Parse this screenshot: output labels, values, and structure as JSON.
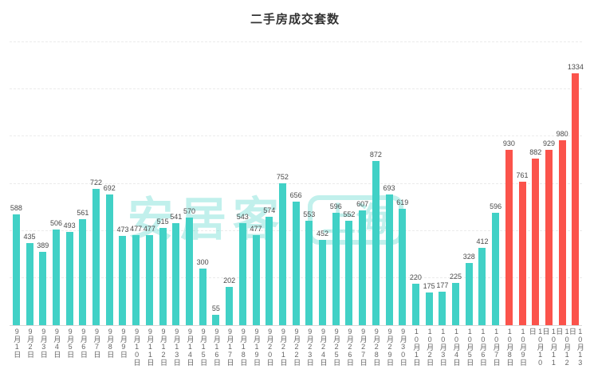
{
  "chart_data": {
    "type": "bar",
    "title": "二手房成交套数",
    "xlabel": "",
    "ylabel": "",
    "ylim": [
      0,
      1500
    ],
    "grid": true,
    "grid_step": 250,
    "legend_position": "none",
    "series_color": "#41D1C6",
    "highlight_color": "#FB534B",
    "highlight_start_index": 37,
    "categories": [
      "9月1日",
      "9月2日",
      "9月3日",
      "9月4日",
      "9月5日",
      "9月6日",
      "9月7日",
      "9月8日",
      "9月9日",
      "9月10日",
      "9月11日",
      "9月12日",
      "9月13日",
      "9月14日",
      "9月15日",
      "9月16日",
      "9月17日",
      "9月18日",
      "9月19日",
      "9月20日",
      "9月21日",
      "9月22日",
      "9月23日",
      "9月24日",
      "9月25日",
      "9月26日",
      "9月27日",
      "9月28日",
      "9月29日",
      "9月30日",
      "10月1日",
      "10月2日",
      "10月3日",
      "10月4日",
      "10月5日",
      "10月6日",
      "10月7日",
      "10月8日",
      "10月9日",
      "10月10日",
      "10月11日",
      "10月12日",
      "10月13日"
    ],
    "values": [
      588,
      435,
      389,
      506,
      493,
      561,
      722,
      692,
      473,
      477,
      477,
      515,
      541,
      570,
      300,
      55,
      202,
      543,
      477,
      574,
      752,
      656,
      553,
      452,
      596,
      552,
      607,
      872,
      693,
      619,
      220,
      175,
      177,
      225,
      328,
      412,
      596,
      930,
      761,
      882,
      929,
      980,
      1334
    ]
  },
  "watermark": {
    "text": "安居客",
    "badge": "上海"
  }
}
